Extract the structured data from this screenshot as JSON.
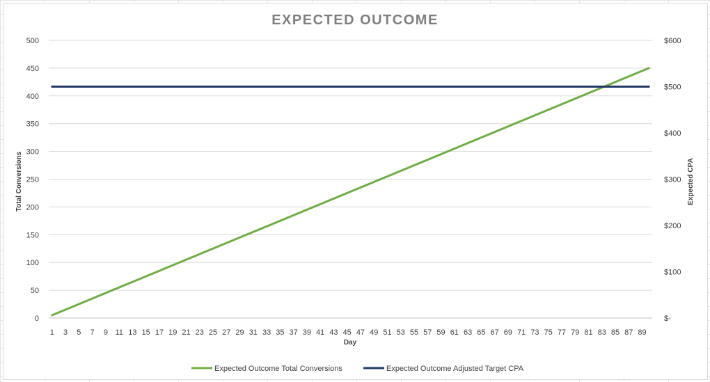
{
  "chart_data": {
    "type": "line",
    "title": "EXPECTED OUTCOME",
    "xlabel": "Day",
    "ylabel": "Total Conversions",
    "y2label": "Expected CPA",
    "x": [
      1,
      90
    ],
    "x_ticks": [
      "1",
      "3",
      "5",
      "7",
      "9",
      "11",
      "13",
      "15",
      "17",
      "19",
      "21",
      "23",
      "25",
      "27",
      "29",
      "31",
      "33",
      "35",
      "37",
      "39",
      "41",
      "43",
      "45",
      "47",
      "49",
      "51",
      "53",
      "55",
      "57",
      "59",
      "61",
      "63",
      "65",
      "67",
      "69",
      "71",
      "73",
      "75",
      "77",
      "79",
      "81",
      "83",
      "85",
      "87",
      "89"
    ],
    "ylim": [
      0,
      500
    ],
    "y_ticks": [
      "0",
      "50",
      "100",
      "150",
      "200",
      "250",
      "300",
      "350",
      "400",
      "450",
      "500"
    ],
    "y2lim": [
      0,
      600
    ],
    "y2_ticks": [
      "$-",
      "$100",
      "$200",
      "$300",
      "$400",
      "$500",
      "$600"
    ],
    "grid": true,
    "legend_position": "bottom",
    "series": [
      {
        "name": "Expected Outcome Total Conversions",
        "axis": "left",
        "color": "#70ad47",
        "x": [
          1,
          90
        ],
        "values": [
          5,
          450
        ]
      },
      {
        "name": "Expected Outcome  Adjusted Target CPA",
        "axis": "right",
        "color": "#203864",
        "x": [
          1,
          90
        ],
        "values": [
          500,
          500
        ]
      }
    ]
  }
}
